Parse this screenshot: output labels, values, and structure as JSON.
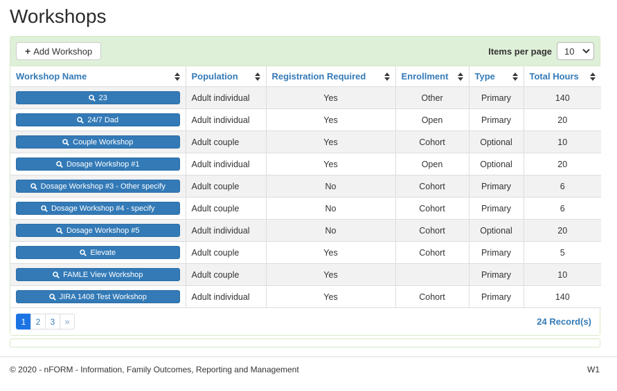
{
  "page_title": "Workshops",
  "colors": {
    "accent_blue": "#337ab7",
    "button_border_blue": "#2e6da4",
    "toolbar_green": "#dff0d8",
    "panel_border_green": "#d6e9c6",
    "active_page_blue": "#1c74e4",
    "row_stripe_gray": "#f2f2f2"
  },
  "icons": {
    "add_workshop": "plus-icon",
    "plus_glyph": "+",
    "workshop_open": "search-icon",
    "items_per_page": "chevron-down-icon",
    "column_sort": "sort-icon"
  },
  "toolbar": {
    "add_button_label": "Add Workshop",
    "items_per_page_label": "Items per page",
    "items_per_page_value": "10"
  },
  "table": {
    "columns": [
      "Workshop Name",
      "Population",
      "Registration Required",
      "Enrollment",
      "Type",
      "Total Hours"
    ],
    "rows": [
      {
        "name": "23",
        "population": "Adult individual",
        "registration_required": "Yes",
        "enrollment": "Other",
        "type": "Primary",
        "total_hours": "140"
      },
      {
        "name": "24/7 Dad",
        "population": "Adult individual",
        "registration_required": "Yes",
        "enrollment": "Open",
        "type": "Primary",
        "total_hours": "20"
      },
      {
        "name": "Couple Workshop",
        "population": "Adult couple",
        "registration_required": "Yes",
        "enrollment": "Cohort",
        "type": "Optional",
        "total_hours": "10"
      },
      {
        "name": "Dosage Workshop #1",
        "population": "Adult individual",
        "registration_required": "Yes",
        "enrollment": "Open",
        "type": "Optional",
        "total_hours": "20"
      },
      {
        "name": "Dosage Workshop #3 - Other specify",
        "population": "Adult couple",
        "registration_required": "No",
        "enrollment": "Cohort",
        "type": "Primary",
        "total_hours": "6"
      },
      {
        "name": "Dosage Workshop #4 - specify",
        "population": "Adult couple",
        "registration_required": "No",
        "enrollment": "Cohort",
        "type": "Primary",
        "total_hours": "6"
      },
      {
        "name": "Dosage Workshop #5",
        "population": "Adult individual",
        "registration_required": "No",
        "enrollment": "Cohort",
        "type": "Optional",
        "total_hours": "20"
      },
      {
        "name": "Elevate",
        "population": "Adult couple",
        "registration_required": "Yes",
        "enrollment": "Cohort",
        "type": "Primary",
        "total_hours": "5"
      },
      {
        "name": "FAMLE View Workshop",
        "population": "Adult couple",
        "registration_required": "Yes",
        "enrollment": "",
        "type": "Primary",
        "total_hours": "10"
      },
      {
        "name": "JIRA 1408 Test Workshop",
        "population": "Adult individual",
        "registration_required": "Yes",
        "enrollment": "Cohort",
        "type": "Primary",
        "total_hours": "140"
      }
    ]
  },
  "pagination": {
    "pages": [
      "1",
      "2",
      "3"
    ],
    "active_page": "1",
    "next_label": "»",
    "records_label": "24 Record(s)"
  },
  "footer": {
    "copyright": "© 2020 - nFORM - Information, Family Outcomes, Reporting and Management",
    "version": "W1"
  }
}
